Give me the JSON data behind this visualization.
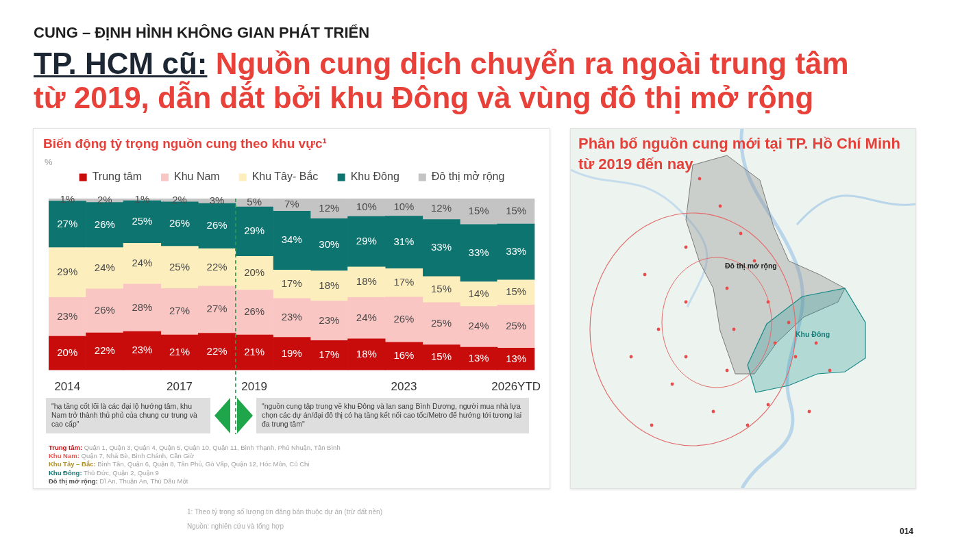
{
  "chart_data": [
    {
      "type": "bar",
      "title": "Biến động tỷ trọng nguồn cung theo khu vực¹",
      "ylabel": "%",
      "legend": "top",
      "stacked": true,
      "tick_labels": "x",
      "categories": [
        "2014",
        null,
        null,
        "2017",
        null,
        "2019",
        null,
        null,
        null,
        "2023",
        null,
        null,
        "2026YTD"
      ],
      "series": [
        {
          "name": "Trung tâm",
          "color": "#c80c0c",
          "values": [
            0.198,
            0.218,
            0.226,
            0.206,
            0.216,
            0.206,
            0.192,
            0.173,
            0.183,
            0.163,
            0.148,
            0.134,
            0.129
          ],
          "value_labels": [
            "20%",
            "22%",
            "23%",
            "21%",
            "22%",
            "21%",
            "19%",
            "17%",
            "18%",
            "16%",
            "15%",
            "13%",
            "13%"
          ]
        },
        {
          "name": "Khu Nam",
          "color": "#f9c6c4",
          "values": [
            0.226,
            0.256,
            0.276,
            0.27,
            0.274,
            0.261,
            0.226,
            0.23,
            0.241,
            0.263,
            0.246,
            0.237,
            0.251
          ],
          "value_labels": [
            "23%",
            "26%",
            "28%",
            "27%",
            "27%",
            "26%",
            "23%",
            "23%",
            "24%",
            "26%",
            "25%",
            "24%",
            "25%"
          ]
        },
        {
          "name": "Khu Tây- Bắc",
          "color": "#fdeebd",
          "values": [
            0.29,
            0.24,
            0.237,
            0.246,
            0.218,
            0.196,
            0.166,
            0.176,
            0.178,
            0.166,
            0.152,
            0.144,
            0.146
          ],
          "value_labels": [
            "29%",
            "24%",
            "24%",
            "25%",
            "22%",
            "20%",
            "17%",
            "18%",
            "18%",
            "17%",
            "15%",
            "14%",
            "15%"
          ]
        },
        {
          "name": "Khu Đông",
          "color": "#0e7470",
          "values": [
            0.272,
            0.264,
            0.249,
            0.259,
            0.264,
            0.289,
            0.343,
            0.304,
            0.294,
            0.306,
            0.332,
            0.334,
            0.326
          ],
          "value_labels": [
            "27%",
            "26%",
            "25%",
            "26%",
            "26%",
            "29%",
            "34%",
            "30%",
            "29%",
            "31%",
            "33%",
            "33%",
            "33%"
          ]
        },
        {
          "name": "Đô thị mở rộng",
          "color": "#c4c4c4",
          "values": [
            0.014,
            0.022,
            0.012,
            0.019,
            0.028,
            0.048,
            0.073,
            0.117,
            0.104,
            0.102,
            0.122,
            0.151,
            0.148
          ],
          "value_labels": [
            "1%",
            "2%",
            "1%",
            "2%",
            "3%",
            "5%",
            "7%",
            "12%",
            "10%",
            "10%",
            "12%",
            "15%",
            "15%"
          ]
        }
      ],
      "ref_lines": [
        {
          "axis": "x",
          "value": "2019",
          "color": "#22a24a",
          "line_style": "dashed"
        }
      ],
      "annotations": [
        "CUNG – ĐỊNH HÌNH KHÔNG GIAN PHÁT TRIỂN",
        "TP. HCM cũ:",
        "Nguồn cung dịch chuyển ra ngoài trung tâm",
        "từ 2019, dẫn dắt bởi khu Đông và vùng đô thị mở rộng",
        "\"hạ tầng cốt lõi là các đại lộ hướng tâm, khu Nam trở thành thủ phủ của chung cư trung và cao cấp\"",
        "\"nguồn cung tập trung về khu Đông và lan sang Bình Dương, người mua nhà lựa chọn các dự án/đại đô thị có hạ tầng kết nối cao tốc/Metro để hướng tới tương lai đa trung tâm\"",
        "Trung tâm: Quận 1, Quận 3, Quận 4, Quận 5, Quận 10, Quận 11, Bình Thạnh, Phú Nhuận, Tân Bình",
        "Khu Nam: Quận 7, Nhà Bè, Bình Chánh, Cần Giờ",
        "Khu Tây – Bắc: Bình Tân, Quận 6, Quận 8, Tân Phú, Gò Vấp, Quận 12, Hóc Môn, Củ Chi",
        "Khu Đông: Thủ Đức, Quận 2, Quận 9",
        "Đô thị mở rộng: Dĩ An, Thuận An, Thủ Dầu Một",
        "1: Theo tỷ trọng số lượng tin đăng bán thuộc dự án (trừ đất nền)",
        "Nguồn: nghiên cứu và tổng hợp",
        "014"
      ]
    },
    {
      "type": "other",
      "title": "Phân bố nguồn cung mới tại TP. Hồ Chí Minh từ 2019 đến nay",
      "annotations": [
        "Đô thị mở rộng",
        "Khu Đông"
      ]
    }
  ]
}
